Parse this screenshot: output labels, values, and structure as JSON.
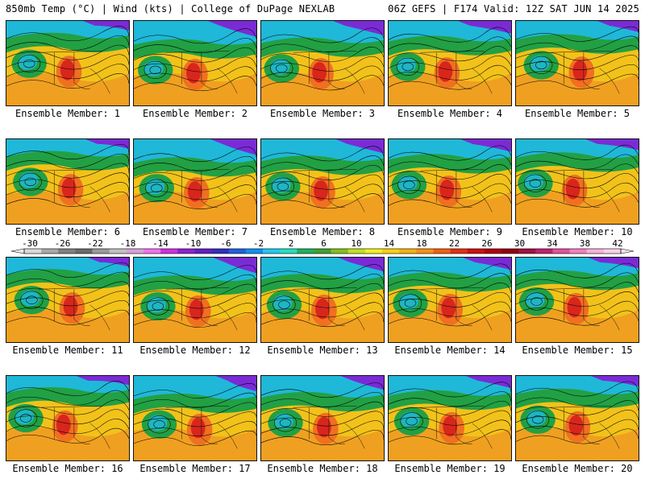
{
  "header": {
    "left": "850mb Temp (°C) | Wind (kts) | College of DuPage NEXLAB",
    "right": "06Z GEFS | F174 Valid: 12Z SAT JUN 14 2025"
  },
  "members": [
    {
      "label": "Ensemble Member: 1"
    },
    {
      "label": "Ensemble Member: 2"
    },
    {
      "label": "Ensemble Member: 3"
    },
    {
      "label": "Ensemble Member: 4"
    },
    {
      "label": "Ensemble Member: 5"
    },
    {
      "label": "Ensemble Member: 6"
    },
    {
      "label": "Ensemble Member: 7"
    },
    {
      "label": "Ensemble Member: 8"
    },
    {
      "label": "Ensemble Member: 9"
    },
    {
      "label": "Ensemble Member: 10"
    },
    {
      "label": "Ensemble Member: 11"
    },
    {
      "label": "Ensemble Member: 12"
    },
    {
      "label": "Ensemble Member: 13"
    },
    {
      "label": "Ensemble Member: 14"
    },
    {
      "label": "Ensemble Member: 15"
    },
    {
      "label": "Ensemble Member: 16"
    },
    {
      "label": "Ensemble Member: 17"
    },
    {
      "label": "Ensemble Member: 18"
    },
    {
      "label": "Ensemble Member: 19"
    },
    {
      "label": "Ensemble Member: 20"
    }
  ],
  "colorbar": {
    "ticks": [
      "-30",
      "-26",
      "-22",
      "-18",
      "-14",
      "-10",
      "-6",
      "-2",
      "2",
      "6",
      "10",
      "14",
      "18",
      "22",
      "26",
      "30",
      "34",
      "38",
      "42"
    ],
    "colors": [
      "#d9d9d9",
      "#a8a8a8",
      "#808080",
      "#6a6a6a",
      "#9a9a9a",
      "#c0c0c0",
      "#d8a0d8",
      "#f070f0",
      "#d030e0",
      "#9020d0",
      "#6020c0",
      "#3030c0",
      "#2060e0",
      "#1090f0",
      "#20c8f0",
      "#20e0c0",
      "#20b060",
      "#40a030",
      "#80c020",
      "#c0e020",
      "#f0f020",
      "#f8d010",
      "#f8b010",
      "#f89010",
      "#f06010",
      "#e03010",
      "#d01010",
      "#b00010",
      "#900010",
      "#a01040",
      "#c02070",
      "#e050a0",
      "#f080c0",
      "#f8b0d8",
      "#f8d0e8"
    ]
  },
  "colors": {
    "cold": "#7a2bd6",
    "cool": "#1fb8d8",
    "mild": "#22a044",
    "warm": "#f2c21a",
    "hot": "#d8261c"
  }
}
